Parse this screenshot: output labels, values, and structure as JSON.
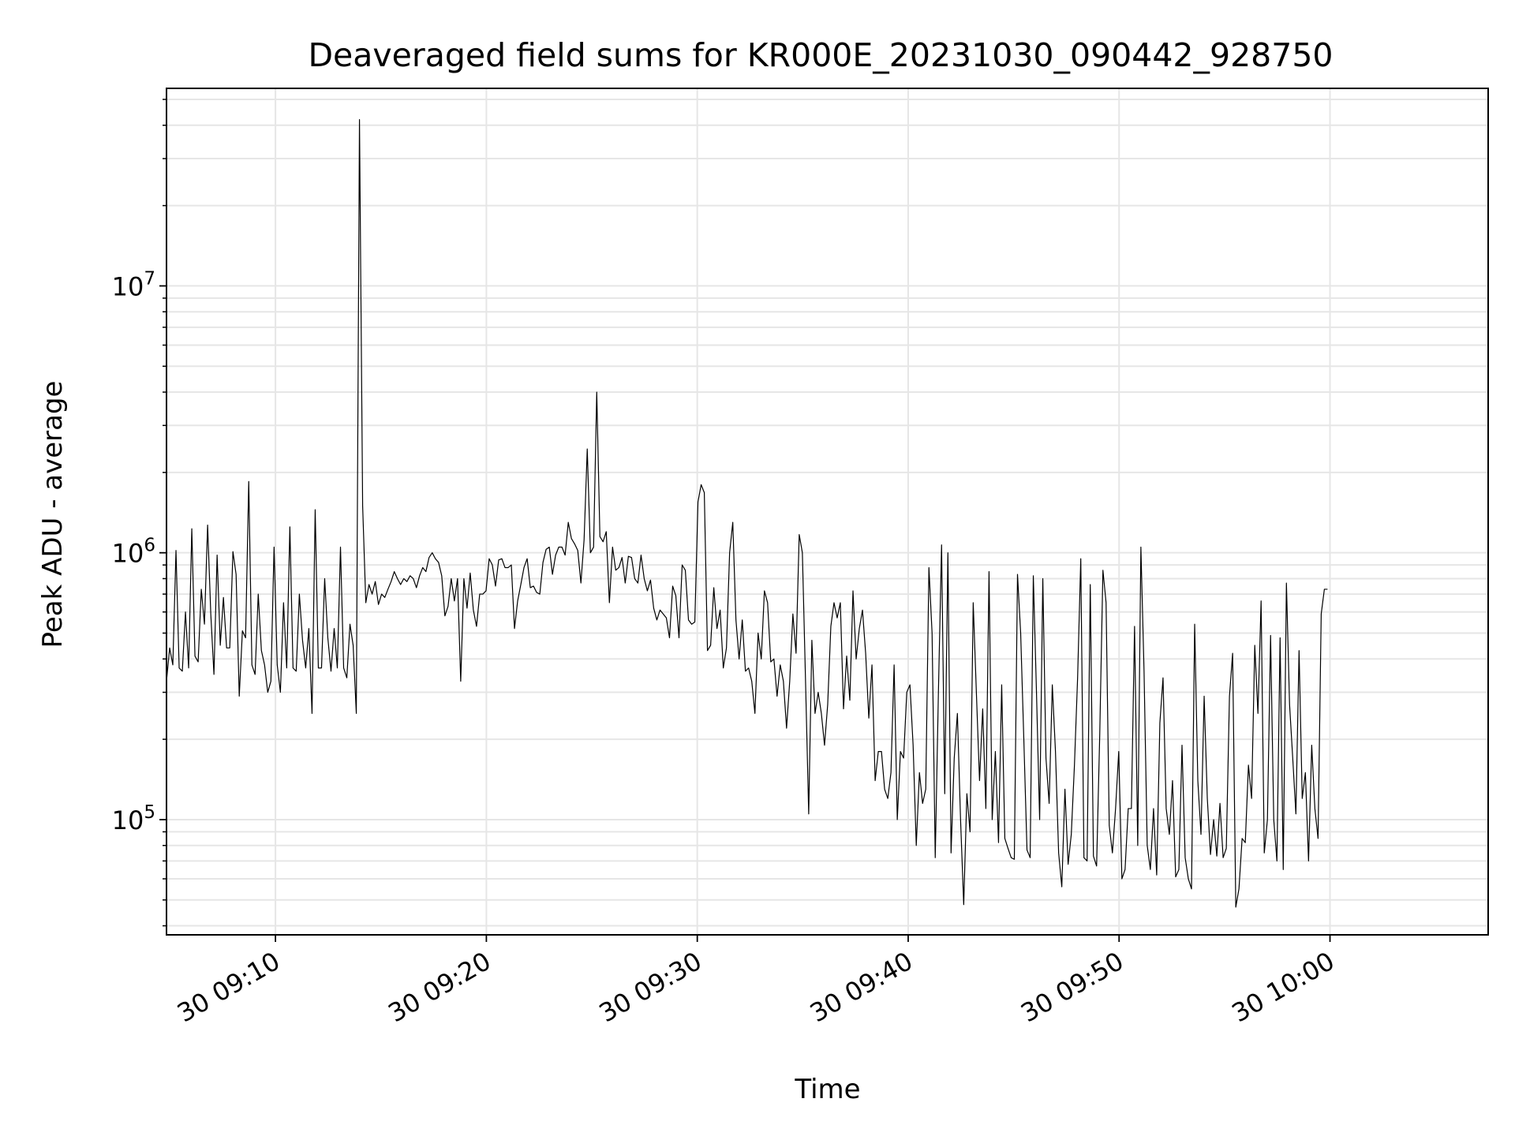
{
  "chart_data": {
    "type": "line",
    "title": "Deaveraged field sums for KR000E_20231030_090442_928750",
    "xlabel": "Time",
    "ylabel": "Peak ADU - average",
    "x_axis_type": "time",
    "y_scale": "log",
    "xlim": [
      "2023-10-30 09:04:50",
      "2023-10-30 10:07:30"
    ],
    "ylim": [
      37000,
      55000000
    ],
    "grid": true,
    "grid_minor": true,
    "line_color": "#000000",
    "x_ticks": [
      "2023-10-30 09:10",
      "2023-10-30 09:20",
      "2023-10-30 09:30",
      "2023-10-30 09:40",
      "2023-10-30 09:50",
      "2023-10-30 10:00"
    ],
    "x_tick_labels": [
      "30 09:10",
      "30 09:20",
      "30 09:30",
      "30 09:40",
      "30 09:50",
      "30 10:00"
    ],
    "y_ticks": [
      100000,
      1000000,
      10000000
    ],
    "y_tick_labels": [
      {
        "base": "10",
        "exp": "5"
      },
      {
        "base": "10",
        "exp": "6"
      },
      {
        "base": "10",
        "exp": "7"
      }
    ],
    "start_time": "2023-10-30 09:04:50",
    "sample_interval_seconds": 9,
    "series": [
      {
        "values": [
          330000,
          440000,
          380000,
          1020000,
          370000,
          360000,
          600000,
          370000,
          1230000,
          410000,
          390000,
          730000,
          540000,
          1270000,
          590000,
          350000,
          980000,
          450000,
          680000,
          440000,
          440000,
          1010000,
          830000,
          290000,
          510000,
          480000,
          1850000,
          380000,
          350000,
          700000,
          430000,
          380000,
          300000,
          330000,
          1050000,
          380000,
          300000,
          650000,
          370000,
          1250000,
          370000,
          360000,
          700000,
          470000,
          370000,
          520000,
          250000,
          1450000,
          370000,
          370000,
          800000,
          480000,
          360000,
          520000,
          370000,
          1050000,
          370000,
          340000,
          540000,
          450000,
          250000,
          42000000,
          1500000,
          650000,
          760000,
          700000,
          780000,
          640000,
          700000,
          680000,
          730000,
          780000,
          850000,
          800000,
          760000,
          800000,
          780000,
          820000,
          800000,
          740000,
          820000,
          880000,
          850000,
          960000,
          1000000,
          950000,
          920000,
          820000,
          580000,
          630000,
          800000,
          660000,
          800000,
          330000,
          800000,
          620000,
          840000,
          610000,
          530000,
          700000,
          700000,
          720000,
          950000,
          900000,
          750000,
          940000,
          950000,
          880000,
          880000,
          900000,
          520000,
          660000,
          760000,
          880000,
          950000,
          740000,
          750000,
          710000,
          700000,
          920000,
          1030000,
          1050000,
          830000,
          980000,
          1050000,
          1050000,
          980000,
          1300000,
          1130000,
          1080000,
          1020000,
          770000,
          1120000,
          2450000,
          1000000,
          1050000,
          4000000,
          1150000,
          1100000,
          1200000,
          650000,
          1050000,
          860000,
          880000,
          960000,
          770000,
          970000,
          960000,
          800000,
          770000,
          980000,
          800000,
          720000,
          790000,
          620000,
          560000,
          610000,
          590000,
          570000,
          480000,
          750000,
          690000,
          480000,
          900000,
          860000,
          560000,
          540000,
          550000,
          1550000,
          1800000,
          1680000,
          430000,
          450000,
          740000,
          520000,
          610000,
          370000,
          440000,
          1000000,
          1300000,
          560000,
          400000,
          560000,
          360000,
          370000,
          330000,
          250000,
          500000,
          400000,
          720000,
          650000,
          390000,
          400000,
          290000,
          380000,
          330000,
          220000,
          330000,
          590000,
          420000,
          1170000,
          1000000,
          330000,
          105000,
          470000,
          250000,
          300000,
          250000,
          190000,
          270000,
          530000,
          650000,
          570000,
          650000,
          260000,
          410000,
          280000,
          720000,
          400000,
          520000,
          610000,
          420000,
          240000,
          380000,
          140000,
          180000,
          180000,
          130000,
          120000,
          150000,
          380000,
          100000,
          180000,
          170000,
          300000,
          320000,
          190000,
          80000,
          150000,
          115000,
          130000,
          880000,
          500000,
          72000,
          300000,
          1070000,
          125000,
          1000000,
          75000,
          170000,
          250000,
          100000,
          48000,
          125000,
          90000,
          650000,
          300000,
          140000,
          260000,
          110000,
          850000,
          100000,
          180000,
          82000,
          320000,
          85000,
          78000,
          72000,
          71000,
          830000,
          500000,
          200000,
          77000,
          72000,
          820000,
          300000,
          100000,
          800000,
          170000,
          115000,
          320000,
          180000,
          75000,
          56000,
          130000,
          68000,
          88000,
          160000,
          340000,
          950000,
          72000,
          70000,
          760000,
          73000,
          67000,
          210000,
          860000,
          650000,
          95000,
          75000,
          110000,
          180000,
          60000,
          65000,
          110000,
          110000,
          530000,
          80000,
          1050000,
          360000,
          80000,
          65000,
          110000,
          62000,
          230000,
          340000,
          110000,
          88000,
          140000,
          61000,
          65000,
          190000,
          72000,
          60000,
          55000,
          540000,
          140000,
          88000,
          290000,
          120000,
          74000,
          100000,
          73000,
          115000,
          72000,
          78000,
          290000,
          420000,
          47000,
          55000,
          85000,
          82000,
          160000,
          120000,
          450000,
          250000,
          660000,
          75000,
          100000,
          490000,
          100000,
          70000,
          480000,
          65000,
          770000,
          270000,
          170000,
          105000,
          430000,
          120000,
          150000,
          70000,
          190000,
          110000,
          85000,
          590000,
          730000,
          730000
        ]
      }
    ]
  }
}
